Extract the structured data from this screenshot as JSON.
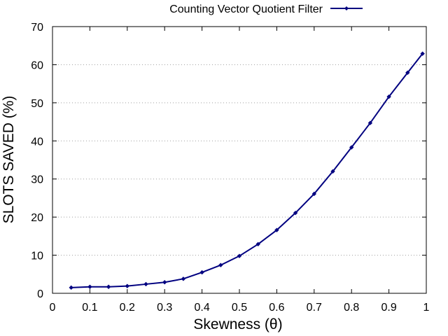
{
  "chart_data": {
    "type": "line",
    "xlabel": "Skewness (θ)",
    "ylabel": "SLOTS SAVED (%)",
    "xlim": [
      0,
      1
    ],
    "ylim": [
      0,
      70
    ],
    "x_ticks": [
      "0",
      "0.1",
      "0.2",
      "0.3",
      "0.4",
      "0.5",
      "0.6",
      "0.7",
      "0.8",
      "0.9",
      "1"
    ],
    "y_ticks": [
      "0",
      "10",
      "20",
      "30",
      "40",
      "50",
      "60",
      "70"
    ],
    "grid": "horizontal dotted",
    "legend_position": "top",
    "series": [
      {
        "name": "Counting Vector Quotient Filter",
        "color": "#000080",
        "marker": "diamond",
        "x": [
          0.05,
          0.1,
          0.15,
          0.2,
          0.25,
          0.3,
          0.35,
          0.4,
          0.45,
          0.5,
          0.55,
          0.6,
          0.65,
          0.7,
          0.75,
          0.8,
          0.85,
          0.9,
          0.95,
          0.99
        ],
        "y": [
          1.5,
          1.7,
          1.7,
          1.9,
          2.4,
          2.9,
          3.8,
          5.5,
          7.4,
          9.8,
          12.9,
          16.6,
          21.1,
          26.1,
          32.0,
          38.3,
          44.7,
          51.6,
          57.9,
          62.9
        ]
      }
    ]
  }
}
